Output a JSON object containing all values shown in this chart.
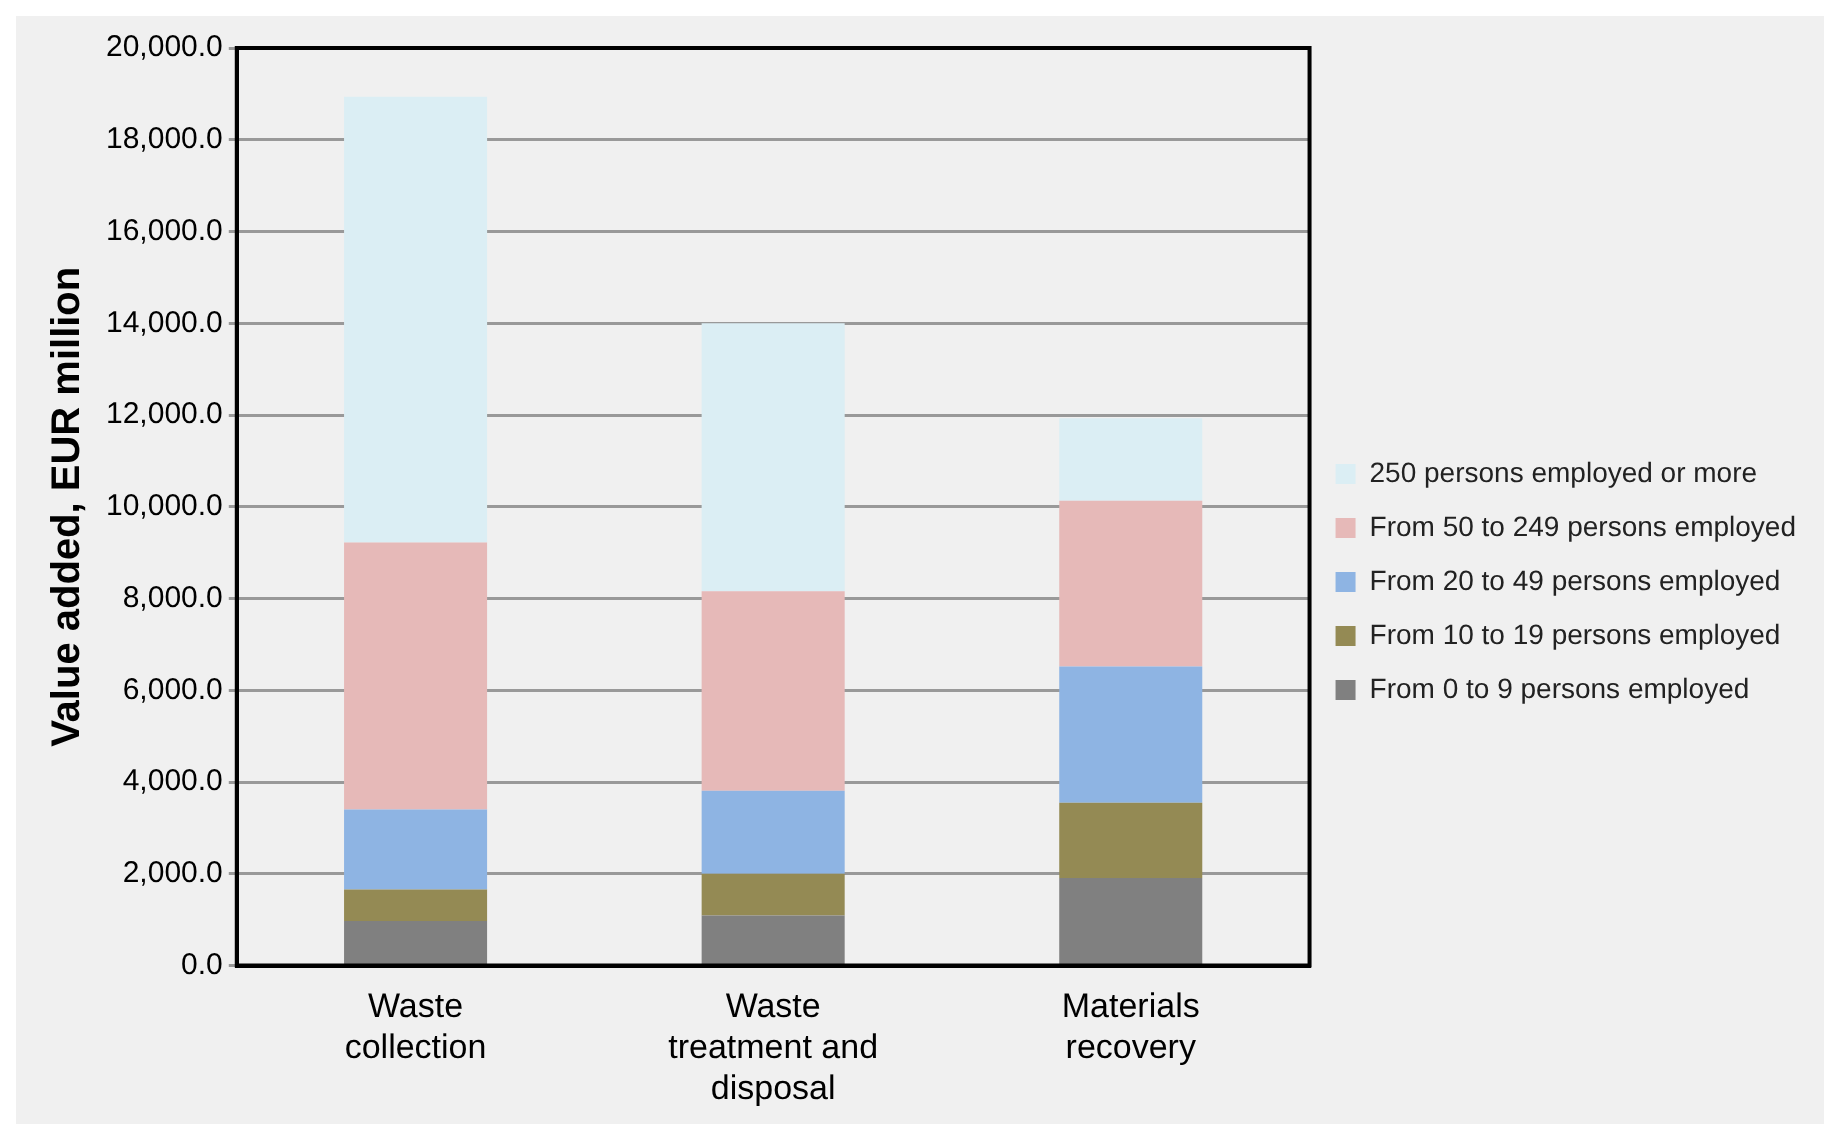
{
  "chart_data": {
    "type": "bar",
    "stacked": true,
    "ylabel": "Value added, EUR million",
    "categories": [
      "Waste collection",
      "Waste treatment and disposal",
      "Materials recovery"
    ],
    "series": [
      {
        "name": "From 0 to 9 persons employed",
        "color": "#808080",
        "values": [
          970,
          1090,
          1910
        ]
      },
      {
        "name": "From 10 to 19 persons employed",
        "color": "#948a54",
        "values": [
          690,
          910,
          1640
        ]
      },
      {
        "name": "From 20 to 49 persons employed",
        "color": "#8eb4e3",
        "values": [
          1740,
          1810,
          2970
        ]
      },
      {
        "name": "From 50 to 249 persons employed",
        "color": "#e6b9b8",
        "values": [
          5820,
          4350,
          3610
        ]
      },
      {
        "name": "250 persons employed or more",
        "color": "#dbeef4",
        "values": [
          9720,
          5840,
          1800
        ]
      }
    ],
    "ylim": [
      0,
      20000
    ],
    "yticks": [
      {
        "value": 0,
        "label": "0.0"
      },
      {
        "value": 2000,
        "label": "2,000.0"
      },
      {
        "value": 4000,
        "label": "4,000.0"
      },
      {
        "value": 6000,
        "label": "6,000.0"
      },
      {
        "value": 8000,
        "label": "8,000.0"
      },
      {
        "value": 10000,
        "label": "10,000.0"
      },
      {
        "value": 12000,
        "label": "12,000.0"
      },
      {
        "value": 14000,
        "label": "14,000.0"
      },
      {
        "value": 16000,
        "label": "16,000.0"
      },
      {
        "value": 18000,
        "label": "18,000.0"
      },
      {
        "value": 20000,
        "label": "20,000.0"
      }
    ],
    "grid": "y",
    "legend": "right"
  }
}
